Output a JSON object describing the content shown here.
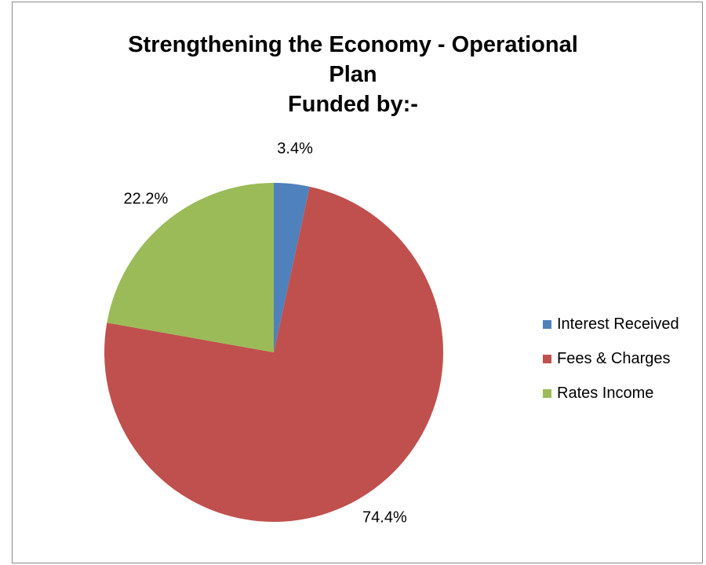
{
  "chart_data": {
    "type": "pie",
    "title_lines": [
      "Strengthening the Economy - Operational",
      "Plan",
      "Funded by:-"
    ],
    "slices": [
      {
        "label": "Interest Received",
        "value": 3.4,
        "data_label": "3.4%",
        "color": "#4f81bd"
      },
      {
        "label": "Fees & Charges",
        "value": 74.4,
        "data_label": "74.4%",
        "color": "#c0504d"
      },
      {
        "label": "Rates Income",
        "value": 22.2,
        "data_label": "22.2%",
        "color": "#9bbb59"
      }
    ],
    "start_angle_deg": 0,
    "direction": "clockwise",
    "legend_position": "right"
  }
}
